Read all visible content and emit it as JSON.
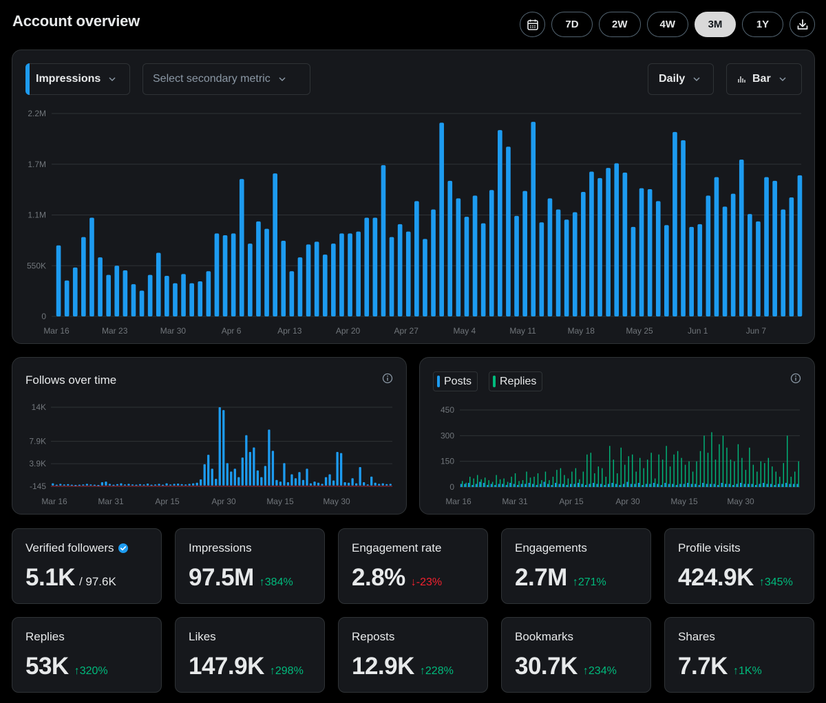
{
  "header": {
    "title": "Account overview",
    "ranges": [
      "7D",
      "2W",
      "4W",
      "3M",
      "1Y"
    ],
    "active_range": "3M"
  },
  "controls": {
    "primary_metric": "Impressions",
    "secondary_metric_placeholder": "Select secondary metric",
    "interval": "Daily",
    "chart_type": "Bar"
  },
  "chart_data": [
    {
      "type": "bar",
      "y_tick_labels": [
        "2.2M",
        "1.7M",
        "1.1M",
        "550K",
        "0"
      ],
      "x_tick_labels": [
        "Mar 16",
        "Mar 23",
        "Mar 30",
        "Apr 6",
        "Apr 13",
        "Apr 20",
        "Apr 27",
        "May 4",
        "May 11",
        "May 18",
        "May 25",
        "Jun 1",
        "Jun 7"
      ],
      "ylim": [
        0,
        2200000
      ],
      "grid": true,
      "color": "#1d9bf0",
      "values": [
        770000,
        390000,
        530000,
        860000,
        1070000,
        640000,
        450000,
        550000,
        500000,
        350000,
        280000,
        450000,
        690000,
        440000,
        360000,
        460000,
        360000,
        380000,
        490000,
        900000,
        880000,
        900000,
        1490000,
        790000,
        1030000,
        950000,
        1550000,
        820000,
        490000,
        640000,
        780000,
        810000,
        670000,
        790000,
        900000,
        900000,
        920000,
        1070000,
        1070000,
        1640000,
        860000,
        1000000,
        920000,
        1250000,
        840000,
        1160000,
        2100000,
        1470000,
        1280000,
        1080000,
        1310000,
        1010000,
        1370000,
        2020000,
        1840000,
        1090000,
        1360000,
        2110000,
        1020000,
        1280000,
        1160000,
        1050000,
        1130000,
        1350000,
        1570000,
        1500000,
        1610000,
        1660000,
        1560000,
        970000,
        1390000,
        1380000,
        1250000,
        990000,
        2000000,
        1910000,
        970000,
        1000000,
        1310000,
        1510000,
        1190000,
        1330000,
        1700000,
        1110000,
        1030000,
        1510000,
        1470000,
        1160000,
        1290000,
        1530000
      ]
    },
    {
      "type": "bar",
      "title": "Follows over time",
      "y_tick_labels": [
        "14K",
        "7.9K",
        "3.9K",
        "-145"
      ],
      "x_tick_labels": [
        "Mar 16",
        "Mar 31",
        "Apr 15",
        "Apr 30",
        "May 15",
        "May 30"
      ],
      "color": "#1d9bf0",
      "values": [
        400,
        150,
        300,
        200,
        250,
        150,
        100,
        150,
        200,
        300,
        200,
        150,
        100,
        600,
        700,
        300,
        150,
        250,
        400,
        200,
        300,
        200,
        150,
        250,
        200,
        350,
        150,
        200,
        300,
        150,
        400,
        200,
        300,
        350,
        250,
        200,
        300,
        400,
        500,
        1100,
        3800,
        5500,
        3000,
        1200,
        14000,
        13500,
        4000,
        2500,
        3000,
        1500,
        5000,
        9000,
        6000,
        6800,
        2700,
        1500,
        3500,
        10000,
        6200,
        1000,
        700,
        4000,
        600,
        2000,
        1300,
        2400,
        1000,
        3000,
        400,
        700,
        500,
        300,
        1500,
        2000,
        900,
        6000,
        5800,
        600,
        500,
        1300,
        400,
        3300,
        600,
        200,
        1600,
        500,
        300,
        400,
        250,
        300
      ]
    },
    {
      "type": "bar",
      "series": [
        {
          "name": "Posts",
          "color": "#1d9bf0"
        },
        {
          "name": "Replies",
          "color": "#00ba7c"
        }
      ],
      "y_tick_labels": [
        "450",
        "300",
        "150",
        "0"
      ],
      "x_tick_labels": [
        "Mar 16",
        "Mar 31",
        "Apr 15",
        "Apr 30",
        "May 15",
        "May 30"
      ],
      "ylim": [
        0,
        450
      ],
      "grid": true,
      "posts_values": [
        3,
        3,
        4,
        2,
        3,
        5,
        4,
        2,
        3,
        2,
        3,
        3,
        2,
        4,
        3,
        2,
        3,
        3,
        4,
        3,
        2,
        3,
        5,
        3,
        2,
        4,
        3,
        3,
        2,
        3,
        3,
        4,
        3,
        2,
        3,
        4,
        3,
        3,
        2,
        3,
        4,
        3,
        2,
        3,
        5,
        3,
        3,
        4,
        2,
        3,
        3,
        4,
        3,
        2,
        4,
        3,
        3,
        2,
        3,
        3,
        4,
        3,
        3,
        2,
        4,
        3,
        3,
        3,
        2,
        4,
        3,
        3,
        2,
        3,
        4,
        3,
        3,
        3,
        2,
        3,
        4,
        3,
        3,
        2,
        3,
        3,
        4,
        3,
        3,
        3
      ],
      "replies_values": [
        35,
        25,
        60,
        50,
        70,
        45,
        55,
        40,
        30,
        70,
        45,
        50,
        30,
        60,
        80,
        35,
        40,
        90,
        55,
        60,
        80,
        40,
        90,
        40,
        60,
        100,
        110,
        70,
        50,
        90,
        110,
        45,
        90,
        190,
        200,
        80,
        120,
        110,
        60,
        240,
        160,
        80,
        230,
        130,
        180,
        190,
        90,
        170,
        110,
        160,
        200,
        50,
        190,
        160,
        240,
        120,
        190,
        210,
        170,
        130,
        150,
        90,
        150,
        210,
        300,
        200,
        320,
        160,
        250,
        300,
        230,
        160,
        150,
        250,
        170,
        100,
        230,
        130,
        90,
        150,
        140,
        170,
        120,
        90,
        60,
        140,
        300,
        60,
        90,
        150
      ]
    }
  ],
  "follows_card": {
    "title": "Follows over time"
  },
  "posts_card": {
    "legend_posts": "Posts",
    "legend_replies": "Replies"
  },
  "stats": [
    {
      "label": "Verified followers",
      "value": "5.1K",
      "sub": "/ 97.6K",
      "verified_badge": true
    },
    {
      "label": "Impressions",
      "value": "97.5M",
      "delta": "384%",
      "direction": "up"
    },
    {
      "label": "Engagement rate",
      "value": "2.8%",
      "delta": "-23%",
      "direction": "down"
    },
    {
      "label": "Engagements",
      "value": "2.7M",
      "delta": "271%",
      "direction": "up"
    },
    {
      "label": "Profile visits",
      "value": "424.9K",
      "delta": "345%",
      "direction": "up"
    },
    {
      "label": "Replies",
      "value": "53K",
      "delta": "320%",
      "direction": "up"
    },
    {
      "label": "Likes",
      "value": "147.9K",
      "delta": "298%",
      "direction": "up"
    },
    {
      "label": "Reposts",
      "value": "12.9K",
      "delta": "228%",
      "direction": "up"
    },
    {
      "label": "Bookmarks",
      "value": "30.7K",
      "delta": "234%",
      "direction": "up"
    },
    {
      "label": "Shares",
      "value": "7.7K",
      "delta": "1K%",
      "direction": "up"
    }
  ],
  "icons": {
    "calendar": "calendar-icon",
    "download": "download-icon",
    "chevron": "chevron-down-icon",
    "bar_chart": "bar-chart-icon",
    "info": "info-icon",
    "verified": "verified-badge-icon",
    "arrow_up": "arrow-up-icon",
    "arrow_down": "arrow-down-icon"
  },
  "colors": {
    "accent_blue": "#1d9bf0",
    "accent_green": "#00ba7c",
    "negative_red": "#f4212e",
    "card_bg": "#16181c",
    "border": "#2f3336"
  }
}
